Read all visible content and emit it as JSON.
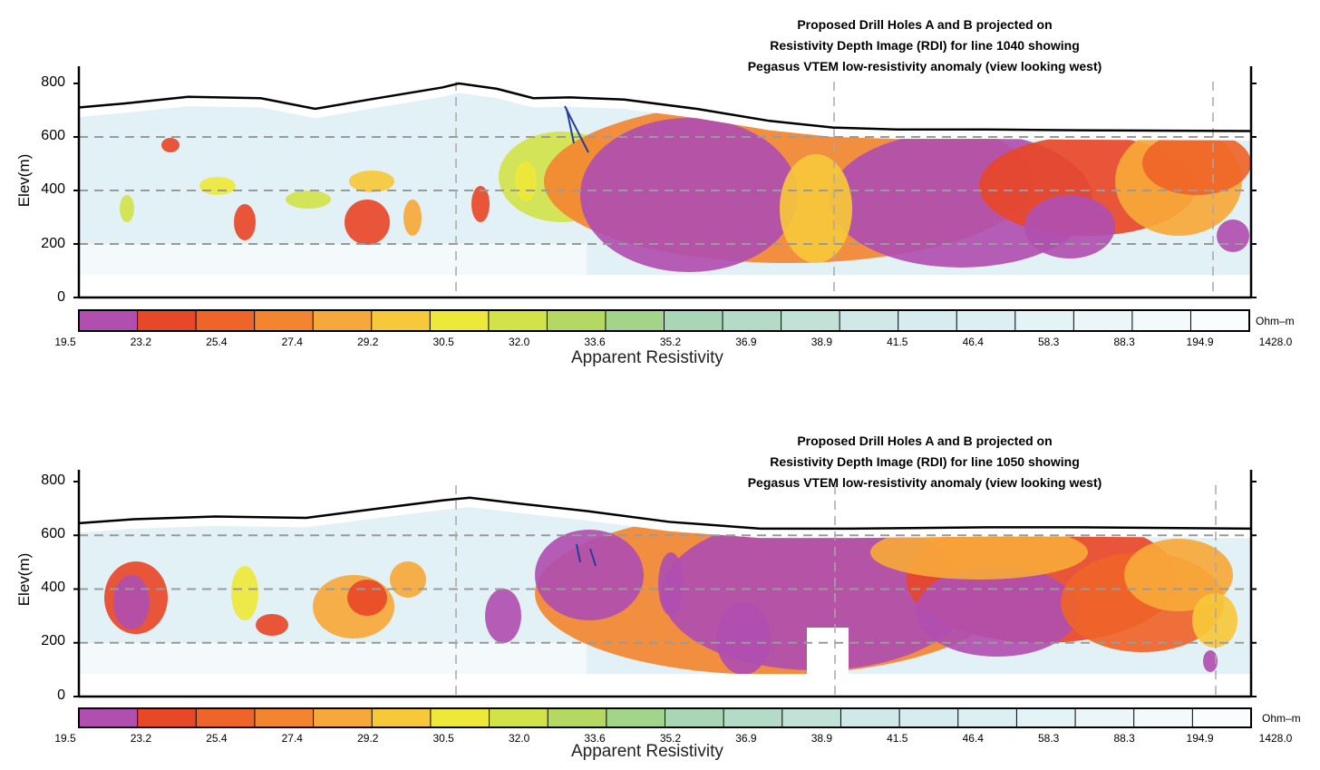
{
  "chart_data": [
    {
      "type": "heatmap",
      "title_lines": [
        "Proposed Drill Holes A and B projected on",
        "Resistivity Depth Image (RDI) for line 1040 showing",
        "Pegasus VTEM low-resistivity anomaly (view looking west)"
      ],
      "ylabel": "Elev(m)",
      "yticks": [
        "800",
        "600",
        "400",
        "200",
        "0"
      ],
      "ylim": [
        0,
        870
      ],
      "grid": true,
      "colorbar_title": "Apparent Resistivity",
      "colorbar_unit": "Ohm–m",
      "colorbar_ticks": [
        "19.5",
        "23.2",
        "25.4",
        "27.4",
        "29.2",
        "30.5",
        "32.0",
        "33.6",
        "35.2",
        "36.9",
        "38.9",
        "41.5",
        "46.4",
        "58.3",
        "88.3",
        "194.9",
        "1428.0"
      ],
      "colorbar_colors": [
        "#b04fb0",
        "#e84828",
        "#ef6428",
        "#f38530",
        "#f7a83a",
        "#f7c83a",
        "#eee838",
        "#d2e34a",
        "#b5d862",
        "#a2d489",
        "#a9d6b5",
        "#b3dbc7",
        "#c2e2d8",
        "#d0e8e8",
        "#d6ecef",
        "#dcf0f4",
        "#e4f3f6",
        "#ecf6f8",
        "#f3fafb",
        "#fafdfd"
      ],
      "topography": [
        [
          0,
          710
        ],
        [
          50,
          725
        ],
        [
          120,
          750
        ],
        [
          200,
          745
        ],
        [
          260,
          705
        ],
        [
          320,
          740
        ],
        [
          400,
          785
        ],
        [
          418,
          800
        ],
        [
          460,
          780
        ],
        [
          500,
          745
        ],
        [
          540,
          748
        ],
        [
          600,
          740
        ],
        [
          680,
          705
        ],
        [
          760,
          660
        ],
        [
          830,
          635
        ],
        [
          900,
          628
        ],
        [
          1000,
          628
        ],
        [
          1100,
          625
        ],
        [
          1290,
          622
        ]
      ],
      "drill_holes": [
        "A",
        "B"
      ]
    },
    {
      "type": "heatmap",
      "title_lines": [
        "Proposed Drill Holes A and B projected on",
        "Resistivity Depth Image (RDI) for line 1050 showing",
        "Pegasus VTEM low-resistivity anomaly (view looking west)"
      ],
      "ylabel": "Elev(m)",
      "yticks": [
        "800",
        "600",
        "400",
        "200",
        "0"
      ],
      "ylim": [
        0,
        870
      ],
      "grid": true,
      "colorbar_title": "Apparent Resistivity",
      "colorbar_unit": "Ohm–m",
      "colorbar_ticks": [
        "19.5",
        "23.2",
        "25.4",
        "27.4",
        "29.2",
        "30.5",
        "32.0",
        "33.6",
        "35.2",
        "36.9",
        "38.9",
        "41.5",
        "46.4",
        "58.3",
        "88.3",
        "194.9",
        "1428.0"
      ],
      "colorbar_colors": [
        "#b04fb0",
        "#e84828",
        "#ef6428",
        "#f38530",
        "#f7a83a",
        "#f7c83a",
        "#eee838",
        "#d2e34a",
        "#b5d862",
        "#a2d489",
        "#a9d6b5",
        "#b3dbc7",
        "#c2e2d8",
        "#d0e8e8",
        "#d6ecef",
        "#dcf0f4",
        "#e4f3f6",
        "#ecf6f8",
        "#f3fafb",
        "#fafdfd"
      ],
      "topography": [
        [
          0,
          645
        ],
        [
          60,
          660
        ],
        [
          150,
          670
        ],
        [
          250,
          665
        ],
        [
          330,
          700
        ],
        [
          400,
          730
        ],
        [
          430,
          740
        ],
        [
          480,
          720
        ],
        [
          560,
          690
        ],
        [
          650,
          650
        ],
        [
          750,
          625
        ],
        [
          850,
          625
        ],
        [
          1000,
          630
        ],
        [
          1100,
          630
        ],
        [
          1290,
          625
        ]
      ],
      "drill_holes": [
        "A",
        "B"
      ]
    }
  ]
}
